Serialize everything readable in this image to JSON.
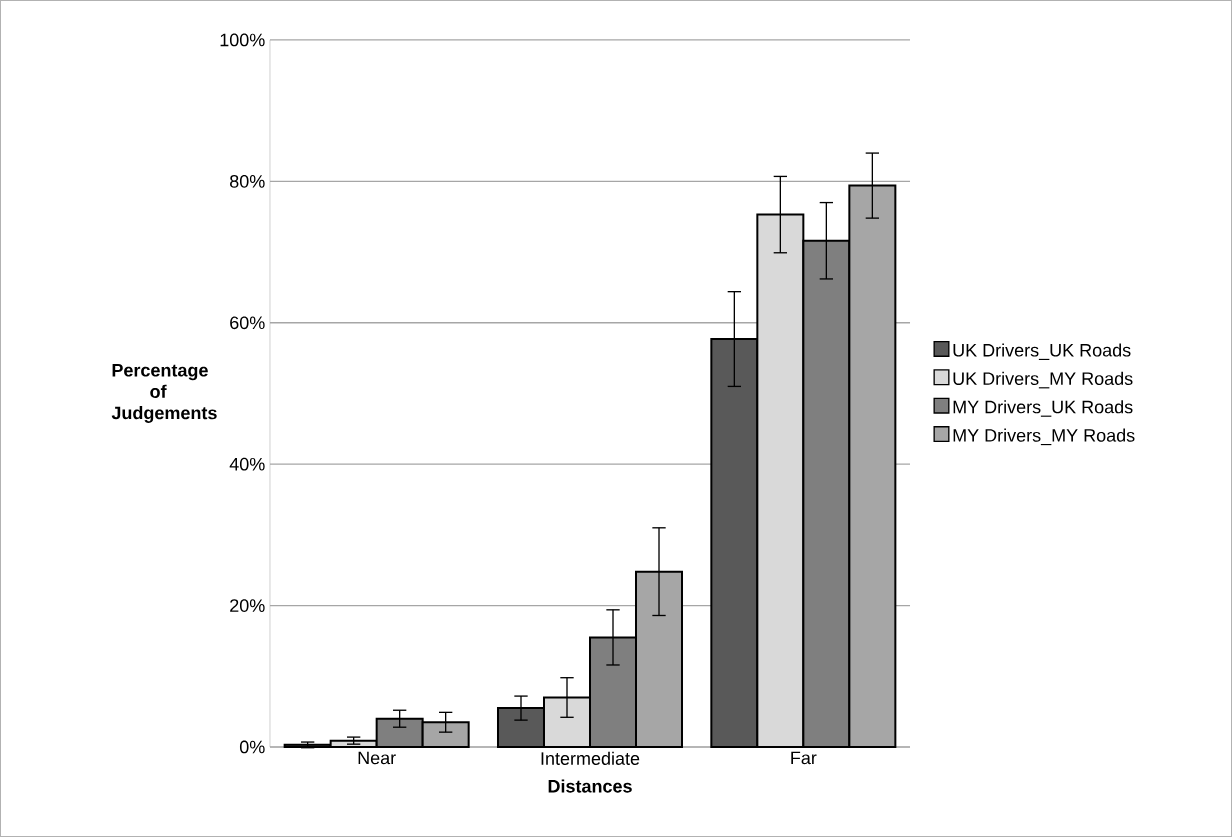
{
  "chart_data": {
    "type": "bar",
    "xlabel": "Distances",
    "ylabel": "Percentage of Judgements",
    "categories": [
      "Near",
      "Intermediate",
      "Far"
    ],
    "series": [
      {
        "name": "UK Drivers_UK Roads",
        "color": "#595959",
        "values": [
          0.3,
          5.5,
          57.7
        ],
        "errors": [
          0.4,
          1.7,
          6.7
        ]
      },
      {
        "name": "UK Drivers_MY Roads",
        "color": "#d9d9d9",
        "values": [
          0.9,
          7.0,
          75.3
        ],
        "errors": [
          0.5,
          2.8,
          5.4
        ]
      },
      {
        "name": "MY Drivers_UK Roads",
        "color": "#7f7f7f",
        "values": [
          4.0,
          15.5,
          71.6
        ],
        "errors": [
          1.2,
          3.9,
          5.4
        ]
      },
      {
        "name": "MY Drivers_MY Roads",
        "color": "#a6a6a6",
        "values": [
          3.5,
          24.8,
          79.4
        ],
        "errors": [
          1.4,
          6.2,
          4.6
        ]
      }
    ],
    "ylim": [
      0,
      100
    ],
    "yticks": [
      {
        "value": 0,
        "label": "0%"
      },
      {
        "value": 20,
        "label": "20%"
      },
      {
        "value": 40,
        "label": "40%"
      },
      {
        "value": 60,
        "label": "60%"
      },
      {
        "value": 80,
        "label": "80%"
      },
      {
        "value": 100,
        "label": "100%"
      }
    ],
    "grid": "y",
    "legend": "right"
  }
}
